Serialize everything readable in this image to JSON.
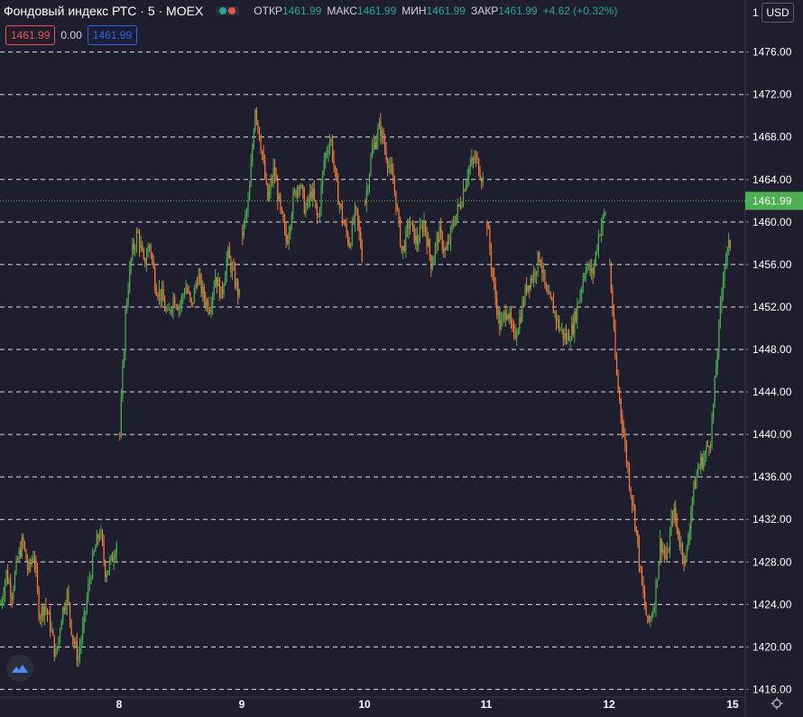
{
  "header": {
    "title": "Фондовый индекс РТС · 5 · MOEX",
    "ohlc": [
      {
        "label": "ОТКР",
        "value": "1461.99"
      },
      {
        "label": "МАКС",
        "value": "1461.99"
      },
      {
        "label": "МИН",
        "value": "1461.99"
      },
      {
        "label": "ЗАКР",
        "value": "1461.99"
      }
    ],
    "change": "+4.62 (+0.32%)",
    "sell_price": "1461.99",
    "spread": "0.00",
    "buy_price": "1461.99",
    "currency": "USD"
  },
  "colors": {
    "background": "#1e1e2f",
    "up": "#26a69a",
    "down": "#ef5350",
    "candle_up": "#4caf50",
    "candle_down": "#f57c3c",
    "current_price_bg": "#4caf50",
    "grid": "#ffffff"
  },
  "icons": [
    "tradingview-logo-icon",
    "gear-icon",
    "eye-icon"
  ],
  "chart_data": {
    "type": "candlestick",
    "y_axis": {
      "ticks": [
        "1416.00",
        "1420.00",
        "1424.00",
        "1428.00",
        "1432.00",
        "1436.00",
        "1440.00",
        "1444.00",
        "1448.00",
        "1452.00",
        "1456.00",
        "1460.00",
        "1464.00",
        "1468.00",
        "1472.00",
        "1476.00"
      ],
      "top_cut_label": "1",
      "range": [
        1413.4,
        1480.9
      ]
    },
    "x_axis": {
      "ticks": [
        "8",
        "9",
        "10",
        "11",
        "12",
        "15"
      ]
    },
    "current_price": "1461.99",
    "grid": "horizontal-dashed",
    "series": [
      {
        "name": "day_7",
        "path": [
          1424,
          1427,
          1425,
          1428,
          1430,
          1427,
          1429,
          1423,
          1424,
          1422,
          1419,
          1423,
          1425,
          1421,
          1419,
          1422,
          1426,
          1429,
          1431,
          1427,
          1428,
          1430
        ]
      },
      {
        "name": "day_8",
        "path": [
          1440,
          1452,
          1457,
          1459,
          1456,
          1458,
          1454,
          1453,
          1451,
          1453,
          1452,
          1454,
          1452,
          1455,
          1453,
          1452,
          1455,
          1453,
          1457,
          1455,
          1453
        ]
      },
      {
        "name": "day_9",
        "path": [
          1459,
          1462,
          1471,
          1467,
          1462,
          1465,
          1461,
          1458,
          1462,
          1464,
          1461,
          1463,
          1460,
          1466,
          1468,
          1463,
          1460,
          1458,
          1461,
          1457
        ]
      },
      {
        "name": "day_10",
        "path": [
          1462,
          1467,
          1469,
          1466,
          1463,
          1457,
          1460,
          1458,
          1460,
          1456,
          1459,
          1457,
          1460,
          1462,
          1465,
          1466,
          1464
        ]
      },
      {
        "name": "day_11",
        "path": [
          1460,
          1454,
          1450,
          1452,
          1449,
          1451,
          1454,
          1455,
          1457,
          1453,
          1452,
          1450,
          1449,
          1450,
          1453,
          1456,
          1455,
          1459,
          1461
        ]
      },
      {
        "name": "day_12",
        "path": [
          1456,
          1446,
          1441,
          1436,
          1432,
          1426,
          1422,
          1424,
          1430,
          1428,
          1433,
          1430,
          1428,
          1434,
          1437,
          1438,
          1440,
          1448,
          1456,
          1458
        ]
      }
    ]
  }
}
